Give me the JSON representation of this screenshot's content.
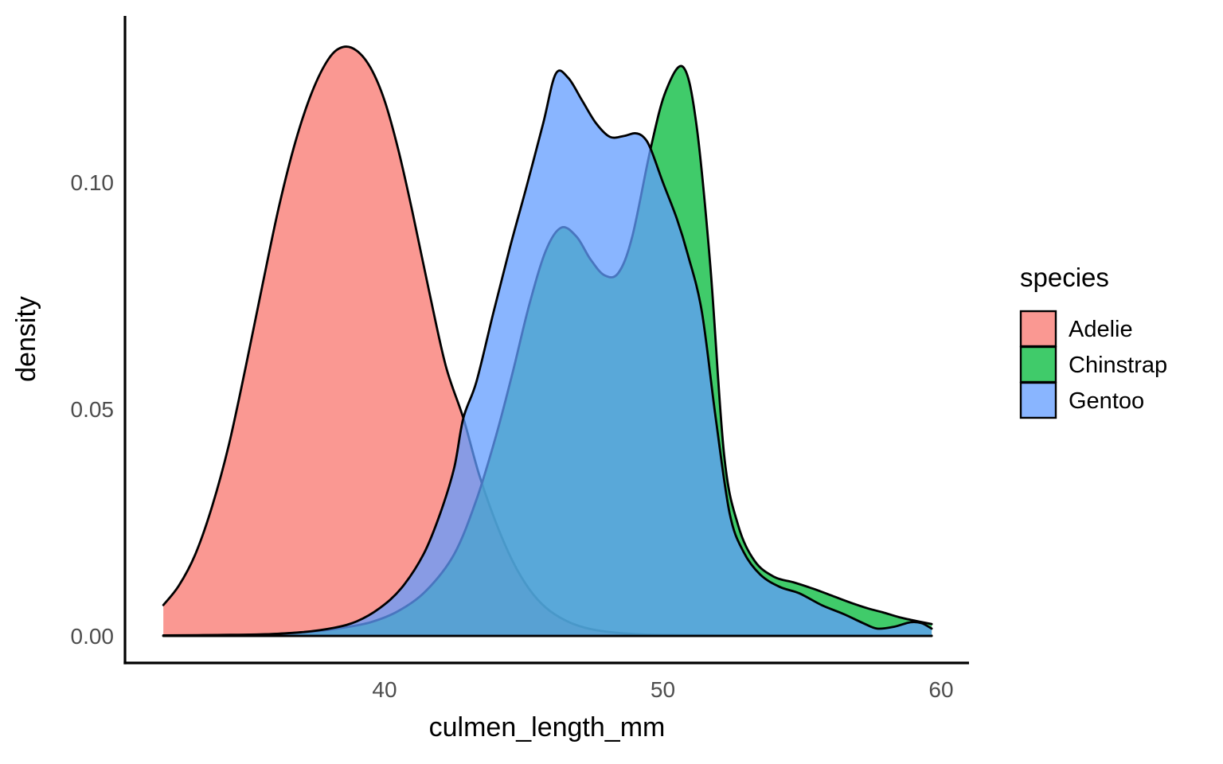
{
  "figure": {
    "background": "#ffffff"
  },
  "x_axis": {
    "title": "culmen_length_mm",
    "ticks": [
      {
        "label": "40",
        "value": 40
      },
      {
        "label": "50",
        "value": 50
      },
      {
        "label": "60",
        "value": 60
      }
    ]
  },
  "y_axis": {
    "title": "density",
    "ticks": [
      {
        "label": "0.00",
        "value": 0.0
      },
      {
        "label": "0.05",
        "value": 0.05
      },
      {
        "label": "0.10",
        "value": 0.1
      }
    ]
  },
  "legend": {
    "title": "species",
    "items": [
      {
        "label": "Adelie",
        "color": "#F8766D"
      },
      {
        "label": "Chinstrap",
        "color": "#00BA38"
      },
      {
        "label": "Gentoo",
        "color": "#619CFF"
      }
    ]
  },
  "style": {
    "fill_opacity": 0.75,
    "curve_stroke": "#000000",
    "curve_stroke_width": 2.8,
    "axis_color": "#000000",
    "axis_stroke_width": 3.2,
    "tick_label_color": "#4d4d4d"
  },
  "chart_data": {
    "type": "area",
    "title": "",
    "xlabel": "culmen_length_mm",
    "ylabel": "density",
    "xlim": [
      30.67,
      61.01
    ],
    "ylim": [
      0,
      0.1367
    ],
    "grid": false,
    "legend_position": "right",
    "series": [
      {
        "name": "Adelie",
        "color": "#F8766D",
        "points": [
          [
            32.05,
            0.0068
          ],
          [
            32.6,
            0.011
          ],
          [
            33.2,
            0.018
          ],
          [
            33.8,
            0.0285
          ],
          [
            34.4,
            0.042
          ],
          [
            35.0,
            0.059
          ],
          [
            35.6,
            0.077
          ],
          [
            36.2,
            0.0945
          ],
          [
            36.8,
            0.109
          ],
          [
            37.4,
            0.12
          ],
          [
            38.0,
            0.1273
          ],
          [
            38.5,
            0.1298
          ],
          [
            39.0,
            0.129
          ],
          [
            39.5,
            0.1252
          ],
          [
            40.0,
            0.118
          ],
          [
            40.5,
            0.107
          ],
          [
            41.0,
            0.0935
          ],
          [
            41.6,
            0.076
          ],
          [
            42.2,
            0.0595
          ],
          [
            42.83,
            0.048
          ],
          [
            43.4,
            0.0355
          ],
          [
            44.0,
            0.025
          ],
          [
            44.6,
            0.0165
          ],
          [
            45.2,
            0.0103
          ],
          [
            45.8,
            0.0062
          ],
          [
            46.5,
            0.0034
          ],
          [
            47.2,
            0.0018
          ],
          [
            48.0,
            0.0009
          ],
          [
            49.0,
            0.0004
          ],
          [
            50.0,
            0.0002
          ],
          [
            52.0,
            0.0001
          ],
          [
            55.0,
            6e-05
          ],
          [
            57.5,
            4e-05
          ],
          [
            59.66,
            3e-05
          ]
        ]
      },
      {
        "name": "Chinstrap",
        "color": "#00BA38",
        "points": [
          [
            32.05,
            0.0001
          ],
          [
            34.0,
            0.0002
          ],
          [
            36.0,
            0.0004
          ],
          [
            37.5,
            0.001
          ],
          [
            38.5,
            0.0018
          ],
          [
            39.5,
            0.003
          ],
          [
            40.5,
            0.0055
          ],
          [
            41.5,
            0.01
          ],
          [
            42.5,
            0.018
          ],
          [
            43.3,
            0.03
          ],
          [
            44.0,
            0.044
          ],
          [
            44.6,
            0.058
          ],
          [
            45.2,
            0.073
          ],
          [
            45.8,
            0.085
          ],
          [
            46.35,
            0.09
          ],
          [
            46.9,
            0.088
          ],
          [
            47.4,
            0.083
          ],
          [
            47.9,
            0.0795
          ],
          [
            48.4,
            0.08
          ],
          [
            48.9,
            0.088
          ],
          [
            49.56,
            0.1074
          ],
          [
            50.1,
            0.12
          ],
          [
            50.73,
            0.1254
          ],
          [
            51.2,
            0.113
          ],
          [
            51.7,
            0.082
          ],
          [
            52.2,
            0.04
          ],
          [
            52.7,
            0.0245
          ],
          [
            53.3,
            0.0165
          ],
          [
            54.0,
            0.013
          ],
          [
            54.7,
            0.0118
          ],
          [
            55.4,
            0.0104
          ],
          [
            56.1,
            0.0088
          ],
          [
            56.8,
            0.0072
          ],
          [
            57.4,
            0.006
          ],
          [
            57.9,
            0.0052
          ],
          [
            58.5,
            0.0041
          ],
          [
            59.1,
            0.0033
          ],
          [
            59.66,
            0.0026
          ]
        ]
      },
      {
        "name": "Gentoo",
        "color": "#619CFF",
        "points": [
          [
            32.05,
            5e-05
          ],
          [
            35.0,
            0.0002
          ],
          [
            37.0,
            0.0008
          ],
          [
            38.2,
            0.0018
          ],
          [
            39.0,
            0.0032
          ],
          [
            39.8,
            0.006
          ],
          [
            40.6,
            0.0105
          ],
          [
            41.4,
            0.018
          ],
          [
            42.0,
            0.027
          ],
          [
            42.5,
            0.037
          ],
          [
            42.83,
            0.048
          ],
          [
            43.3,
            0.056
          ],
          [
            43.9,
            0.071
          ],
          [
            44.5,
            0.0855
          ],
          [
            45.1,
            0.099
          ],
          [
            45.7,
            0.113
          ],
          [
            46.15,
            0.1239
          ],
          [
            46.6,
            0.123
          ],
          [
            47.1,
            0.118
          ],
          [
            47.6,
            0.113
          ],
          [
            48.1,
            0.11
          ],
          [
            48.6,
            0.1102
          ],
          [
            49.0,
            0.1108
          ],
          [
            49.3,
            0.11
          ],
          [
            49.56,
            0.1074
          ],
          [
            50.0,
            0.1
          ],
          [
            50.5,
            0.092
          ],
          [
            50.9,
            0.084
          ],
          [
            51.4,
            0.0715
          ],
          [
            51.9,
            0.048
          ],
          [
            52.4,
            0.027
          ],
          [
            52.9,
            0.0185
          ],
          [
            53.5,
            0.0135
          ],
          [
            54.2,
            0.0108
          ],
          [
            54.9,
            0.0094
          ],
          [
            55.7,
            0.0068
          ],
          [
            56.5,
            0.0048
          ],
          [
            57.2,
            0.0028
          ],
          [
            57.7,
            0.0016
          ],
          [
            58.3,
            0.002
          ],
          [
            58.9,
            0.003
          ],
          [
            59.3,
            0.0028
          ],
          [
            59.66,
            0.0016
          ]
        ]
      }
    ]
  }
}
